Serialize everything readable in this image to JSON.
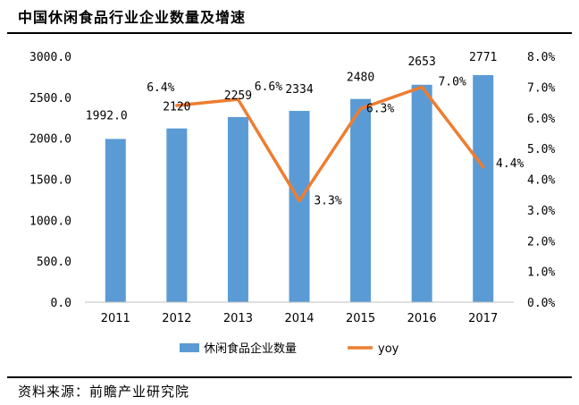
{
  "header": {
    "title": "中国休闲食品行业企业数量及增速"
  },
  "footer": {
    "source": "资料来源：前瞻产业研究院"
  },
  "colors": {
    "bar": "#5b9bd5",
    "line": "#ed7d31"
  },
  "chart_data": {
    "type": "bar",
    "categories": [
      "2011",
      "2012",
      "2013",
      "2014",
      "2015",
      "2016",
      "2017"
    ],
    "series": [
      {
        "name": "休闲食品企业数量",
        "type": "bar",
        "axis": "left",
        "values": [
          1992.0,
          2120,
          2259,
          2334,
          2480,
          2653,
          2771
        ],
        "labels": [
          "1992.0",
          "2120",
          "2259",
          "2334",
          "2480",
          "2653",
          "2771"
        ]
      },
      {
        "name": "yoy",
        "type": "line",
        "axis": "right",
        "values": [
          null,
          6.4,
          6.6,
          3.3,
          6.3,
          7.0,
          4.4
        ],
        "labels": [
          "",
          "6.4%",
          "6.6%",
          "3.3%",
          "6.3%",
          "7.0%",
          "4.4%"
        ]
      }
    ],
    "y_left": {
      "ylim": [
        0,
        3000
      ],
      "ticks": [
        "0.0",
        "500.0",
        "1000.0",
        "1500.0",
        "2000.0",
        "2500.0",
        "3000.0"
      ]
    },
    "y_right": {
      "ylim": [
        0,
        8
      ],
      "ticks": [
        "0.0%",
        "1.0%",
        "2.0%",
        "3.0%",
        "4.0%",
        "5.0%",
        "6.0%",
        "7.0%",
        "8.0%"
      ]
    },
    "legend_position": "bottom",
    "grid": false
  }
}
